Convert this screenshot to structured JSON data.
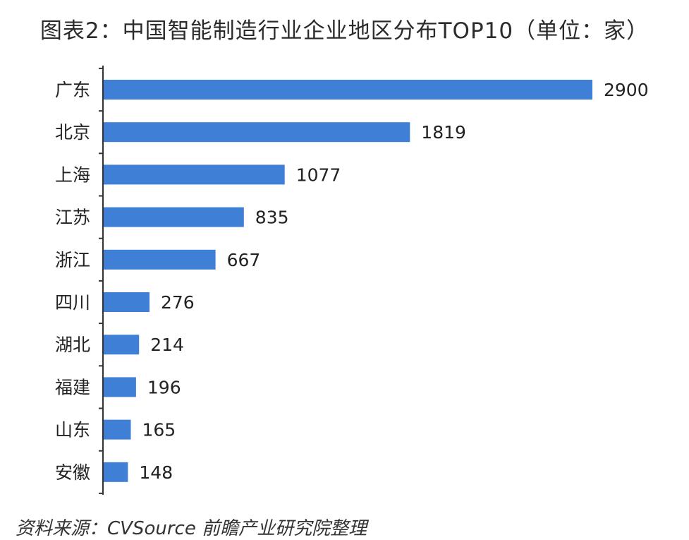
{
  "chart_data": {
    "type": "bar",
    "orientation": "horizontal",
    "title": "图表2：中国智能制造行业企业地区分布TOP10（单位：家）",
    "categories": [
      "广东",
      "北京",
      "上海",
      "江苏",
      "浙江",
      "四川",
      "湖北",
      "福建",
      "山东",
      "安徽"
    ],
    "values": [
      2900,
      1819,
      1077,
      835,
      667,
      276,
      214,
      196,
      165,
      148
    ],
    "data_labels": [
      "2900",
      "1819",
      "1077",
      "835",
      "667",
      "276",
      "214",
      "196",
      "165",
      "148"
    ],
    "xlim": [
      0,
      2900
    ],
    "grid": false,
    "legend": "none",
    "bar_color": "#3f7fd6"
  },
  "source": "资料来源：CVSource 前瞻产业研究院整理"
}
